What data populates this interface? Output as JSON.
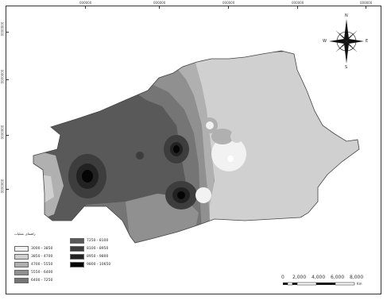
{
  "colors": {
    "background": "#ffffff",
    "class1": "#f2f2f2",
    "class2": "#d0d0d0",
    "class3": "#b0b0b0",
    "class4": "#909090",
    "class5": "#757575",
    "class6": "#595959",
    "class7": "#3d3d3d",
    "class8": "#222222",
    "class9": "#050505"
  },
  "legend": {
    "title": "راهنمای عملیات",
    "items": [
      {
        "label": "3000 - 3850",
        "color": "#f2f2f2"
      },
      {
        "label": "3850 - 4700",
        "color": "#d0d0d0"
      },
      {
        "label": "4700 - 5550",
        "color": "#b0b0b0"
      },
      {
        "label": "5550 - 6400",
        "color": "#909090"
      },
      {
        "label": "6400 - 7250",
        "color": "#757575"
      },
      {
        "label": "7250 - 8100",
        "color": "#595959"
      },
      {
        "label": "8100 - 8950",
        "color": "#3d3d3d"
      },
      {
        "label": "8950 - 9800",
        "color": "#222222"
      },
      {
        "label": "9800 - 10650",
        "color": "#050505"
      }
    ]
  },
  "scale_bar": {
    "labels": [
      "0",
      "2,000",
      "4,000",
      "6,000",
      "8,000"
    ],
    "unit": "Km"
  },
  "north_arrow": {
    "icon": "compass-rose-icon",
    "n": "N",
    "s": "S",
    "e": "E",
    "w": "W"
  },
  "ticks": {
    "top": [
      "000000",
      "000000",
      "000000",
      "000000",
      "000000"
    ],
    "left": [
      "0000000",
      "0000000",
      "0000000",
      "0000000"
    ]
  }
}
